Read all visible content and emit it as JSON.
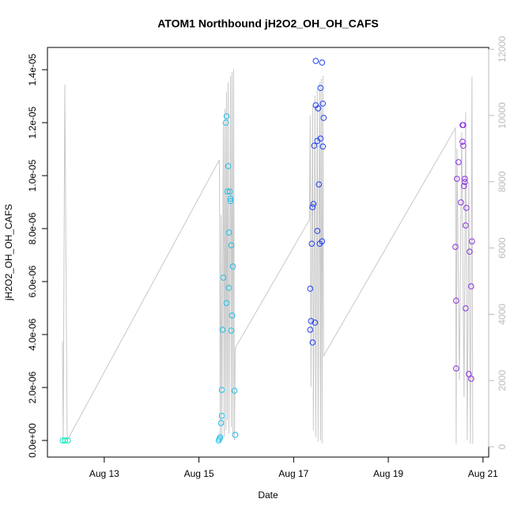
{
  "chart_data": {
    "type": "scatter",
    "title": "ATOM1 Northbound jH2O2_OH_OH_CAFS",
    "x_label": "Date",
    "y_label": "jH2O2_OH_OH_CAFS",
    "xlim": [
      11.8,
      21.12
    ],
    "xticks": [
      {
        "value": 13,
        "label": "Aug 13"
      },
      {
        "value": 15,
        "label": "Aug 15"
      },
      {
        "value": 17,
        "label": "Aug 17"
      },
      {
        "value": 19,
        "label": "Aug 19"
      },
      {
        "value": 21,
        "label": "Aug 21"
      }
    ],
    "ylim": [
      -6.27e-07,
      1.484e-05
    ],
    "yticks": [
      {
        "value": 0,
        "label": "0.0e+00"
      },
      {
        "value": 2e-06,
        "label": "2.0e-06"
      },
      {
        "value": 4e-06,
        "label": "4.0e-06"
      },
      {
        "value": 6e-06,
        "label": "6.0e-06"
      },
      {
        "value": 8e-06,
        "label": "8.0e-06"
      },
      {
        "value": 1e-05,
        "label": "1.0e-05"
      },
      {
        "value": 1.2e-05,
        "label": "1.2e-05"
      },
      {
        "value": 1.4e-05,
        "label": "1.4e-05"
      }
    ],
    "y2lim": [
      -310,
      12053
    ],
    "y2ticks": [
      0,
      2000,
      4000,
      6000,
      8000,
      10000,
      12000
    ],
    "series": [
      {
        "type": "line",
        "axis": "y2",
        "color": "#c8c8c8",
        "x": [
          12.117,
          12.133,
          12.167,
          12.217,
          15.433,
          15.45,
          15.467,
          15.483,
          15.517,
          15.533,
          15.55,
          15.567,
          15.583,
          15.6,
          15.617,
          15.633,
          15.667,
          15.683,
          15.7,
          15.717,
          15.733,
          15.75,
          15.767,
          17.333,
          17.35,
          17.367,
          17.4,
          17.417,
          17.45,
          17.467,
          17.5,
          17.517,
          17.55,
          17.567,
          17.583,
          17.6,
          17.617,
          17.633,
          20.417,
          20.433,
          20.45,
          20.5,
          20.55,
          20.6,
          20.633,
          20.667,
          20.7,
          20.733,
          20.767,
          20.783
        ],
        "values": [
          3174,
          191,
          10931,
          191,
          8663,
          150,
          7000,
          200,
          9800,
          300,
          10200,
          500,
          10700,
          800,
          11000,
          400,
          11200,
          600,
          11300,
          300,
          11400,
          200,
          2983,
          6850,
          10000,
          1800,
          10300,
          500,
          10600,
          300,
          10800,
          150,
          11000,
          200,
          11100,
          100,
          11200,
          2745,
          9618,
          100,
          9000,
          2000,
          9500,
          1500,
          10100,
          200,
          8000,
          100,
          11169,
          100
        ]
      },
      {
        "type": "scatter",
        "color": "#00e8b8",
        "x": [
          12.12,
          12.17,
          12.23
        ],
        "values": [
          0,
          0,
          0
        ]
      },
      {
        "type": "scatter",
        "color": "#20c0e8",
        "x": [
          15.583,
          15.567,
          15.617,
          15.6,
          15.65,
          15.667,
          15.667,
          15.633,
          15.683,
          15.717,
          15.517,
          15.583,
          15.633,
          15.7,
          15.5,
          15.683,
          15.483,
          15.75,
          15.483,
          15.467,
          15.767,
          15.433,
          15.45,
          15.417
        ],
        "values": [
          1.224e-05,
          1.2e-05,
          1.036e-05,
          9.4e-06,
          9.4e-06,
          9.13e-06,
          9.04e-06,
          7.85e-06,
          7.37e-06,
          6.57e-06,
          6.15e-06,
          5.19e-06,
          5.76e-06,
          4.72e-06,
          4.18e-06,
          4.15e-06,
          1.91e-06,
          1.88e-06,
          9.3e-07,
          6.6e-07,
          2.1e-07,
          6e-08,
          1.2e-07,
          0
        ]
      },
      {
        "type": "scatter",
        "color": "#2040f0",
        "x": [
          17.467,
          17.6,
          17.567,
          17.617,
          17.467,
          17.517,
          17.633,
          17.567,
          17.5,
          17.433,
          17.617,
          17.533,
          17.417,
          17.4,
          17.5,
          17.6,
          17.55,
          17.383,
          17.35,
          17.367,
          17.45,
          17.35,
          17.4
        ],
        "values": [
          1.433e-05,
          1.427e-05,
          1.331e-05,
          1.272e-05,
          1.266e-05,
          1.254e-05,
          1.218e-05,
          1.14e-05,
          1.131e-05,
          1.113e-05,
          1.11e-05,
          9.67e-06,
          8.93e-06,
          8.81e-06,
          7.91e-06,
          7.52e-06,
          7.43e-06,
          7.43e-06,
          5.73e-06,
          4.51e-06,
          4.45e-06,
          4.18e-06,
          3.7e-06
        ]
      },
      {
        "type": "scatter",
        "color": "#8a30e0",
        "x": [
          20.567,
          20.583,
          20.567,
          20.583,
          20.483,
          20.45,
          20.617,
          20.617,
          20.6,
          20.533,
          20.65,
          20.633,
          20.767,
          20.417,
          20.717,
          20.75,
          20.433,
          20.633,
          20.433,
          20.7,
          20.75
        ],
        "values": [
          1.191e-05,
          1.191e-05,
          1.128e-05,
          1.113e-05,
          1.051e-05,
          9.88e-06,
          9.88e-06,
          9.76e-06,
          9.61e-06,
          8.99e-06,
          8.78e-06,
          8.12e-06,
          7.52e-06,
          7.31e-06,
          7.13e-06,
          5.82e-06,
          5.28e-06,
          4.99e-06,
          2.72e-06,
          2.51e-06,
          2.33e-06
        ]
      }
    ]
  }
}
